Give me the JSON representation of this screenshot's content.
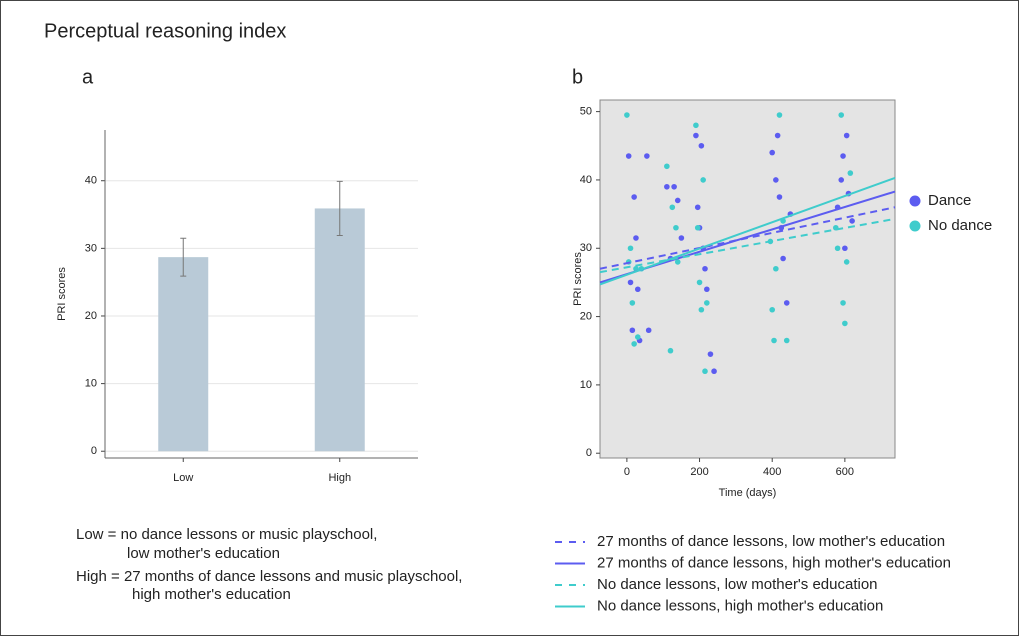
{
  "title": "Perceptual reasoning index",
  "chart_data": [
    {
      "type": "bar",
      "panel": "a",
      "ylabel": "PRI scores",
      "categories": [
        "Low",
        "High"
      ],
      "values": [
        28.7,
        35.9
      ],
      "errors": [
        2.8,
        4.0
      ],
      "color": "#b9cad7",
      "ylim": [
        -1,
        47.5
      ],
      "yticks": [
        0,
        10,
        20,
        30,
        40
      ],
      "grid": true,
      "annotations": [
        "Low = no dance lessons or music playschool,",
        "low mother's education",
        "High = 27 months of dance lessons and music playschool,",
        "high mother's education"
      ]
    },
    {
      "type": "scatter",
      "panel": "b",
      "xlabel": "Time (days)",
      "ylabel": "PRI scores",
      "xlim": [
        -74,
        738
      ],
      "ylim": [
        -0.7,
        51.7
      ],
      "xticks": [
        0,
        200,
        400,
        600
      ],
      "yticks": [
        0,
        10,
        20,
        30,
        40,
        50
      ],
      "series": [
        {
          "name": "Dance",
          "color": "#5c5cf0",
          "x": [
            5,
            10,
            15,
            20,
            25,
            30,
            35,
            55,
            60,
            110,
            120,
            130,
            140,
            150,
            190,
            195,
            200,
            205,
            210,
            215,
            220,
            230,
            240,
            400,
            410,
            415,
            420,
            425,
            430,
            440,
            450,
            580,
            590,
            595,
            600,
            605,
            610,
            620
          ],
          "values": [
            43.5,
            25,
            18,
            37.5,
            31.5,
            24,
            16.5,
            43.5,
            18,
            39,
            28.5,
            39,
            37,
            31.5,
            46.5,
            36,
            33,
            45,
            30,
            27,
            24,
            14.5,
            12,
            44,
            40,
            46.5,
            37.5,
            33,
            28.5,
            22,
            35,
            36,
            40,
            43.5,
            30,
            46.5,
            38,
            34
          ]
        },
        {
          "name": "No dance",
          "color": "#3fcccc",
          "x": [
            0,
            5,
            10,
            15,
            20,
            25,
            30,
            40,
            110,
            120,
            125,
            135,
            140,
            190,
            195,
            200,
            205,
            210,
            215,
            220,
            395,
            400,
            405,
            410,
            420,
            430,
            440,
            575,
            580,
            590,
            595,
            600,
            605,
            615
          ],
          "values": [
            49.5,
            28,
            30,
            22,
            16,
            27,
            17,
            27,
            42,
            15,
            36,
            33,
            28,
            48,
            33,
            25,
            21,
            40,
            12,
            22,
            31,
            21,
            16.5,
            27,
            49.5,
            34,
            16.5,
            33,
            30,
            49.5,
            22,
            19,
            28,
            41
          ]
        }
      ],
      "lines": [
        {
          "name": "27 months of dance lessons, low mother's education",
          "color": "#5c5cf0",
          "dashed": true,
          "x": [
            -74,
            738
          ],
          "values": [
            27,
            36
          ]
        },
        {
          "name": "27 months of dance lessons, high mother's education",
          "color": "#5c5cf0",
          "dashed": false,
          "x": [
            -74,
            738
          ],
          "values": [
            25,
            38.3
          ]
        },
        {
          "name": "No dance lessons, low mother's education",
          "color": "#3fcccc",
          "dashed": true,
          "x": [
            -74,
            738
          ],
          "values": [
            26.5,
            34.3
          ]
        },
        {
          "name": "No dance lessons, high mother's education",
          "color": "#3fcccc",
          "dashed": false,
          "x": [
            -74,
            738
          ],
          "values": [
            24.7,
            40.3
          ]
        }
      ]
    }
  ]
}
